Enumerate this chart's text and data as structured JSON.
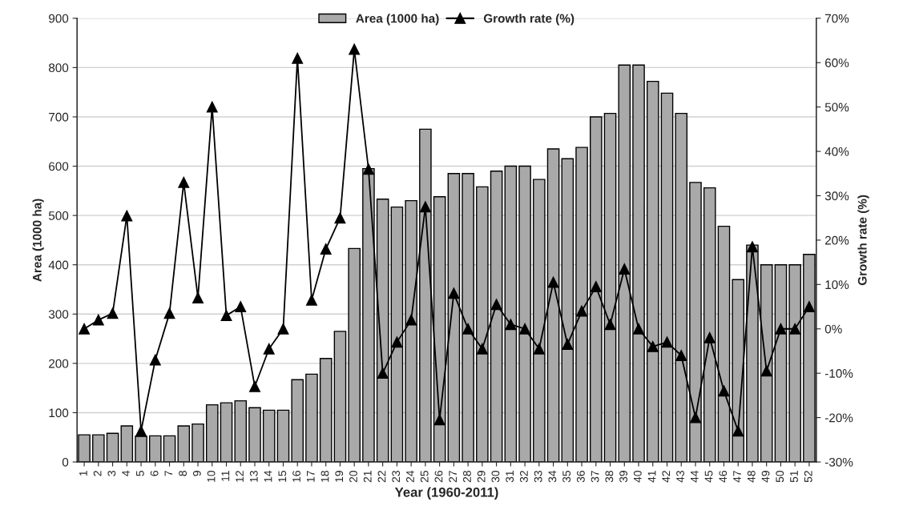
{
  "chart_data": {
    "type": "bar",
    "xlabel": "Year (1960-2011)",
    "ylabel": "Area (1000 ha)",
    "y2label": "Growth rate (%)",
    "categories": [
      "1",
      "2",
      "3",
      "4",
      "5",
      "6",
      "7",
      "8",
      "9",
      "10",
      "11",
      "12",
      "13",
      "14",
      "15",
      "16",
      "17",
      "18",
      "19",
      "20",
      "21",
      "22",
      "23",
      "24",
      "25",
      "26",
      "27",
      "28",
      "29",
      "30",
      "31",
      "32",
      "33",
      "34",
      "35",
      "36",
      "37",
      "38",
      "39",
      "40",
      "41",
      "42",
      "43",
      "44",
      "45",
      "46",
      "47",
      "48",
      "49",
      "50",
      "51",
      "52"
    ],
    "series": [
      {
        "name": "Area (1000 ha)",
        "color": "#a9a9a9",
        "values": [
          55,
          55,
          58,
          73,
          52,
          53,
          53,
          73,
          77,
          116,
          120,
          124,
          110,
          105,
          105,
          167,
          178,
          210,
          265,
          433,
          595,
          533,
          517,
          530,
          675,
          538,
          585,
          585,
          558,
          590,
          600,
          600,
          573,
          635,
          615,
          638,
          700,
          707,
          805,
          805,
          772,
          748,
          707,
          567,
          556,
          478,
          370,
          440,
          400,
          400,
          400,
          421
        ]
      },
      {
        "name": "Growth rate (%)",
        "type": "line",
        "axis": "y2",
        "color": "#000000",
        "marker": "triangle",
        "line_style": "solid",
        "values": [
          0,
          2,
          3.5,
          25.5,
          -23,
          -7,
          3.5,
          33,
          7,
          50,
          3,
          5,
          -13,
          -4.5,
          0,
          61,
          6.5,
          18,
          25,
          63,
          36,
          -10,
          -3,
          2,
          27.5,
          -20.5,
          8,
          0,
          -4.5,
          5.5,
          1,
          0,
          -4.5,
          10.5,
          -3.5,
          4,
          9.5,
          1,
          13.5,
          0,
          -4,
          -3,
          -6,
          -20,
          -2,
          -14,
          -23,
          18.5,
          -9.5,
          0,
          0,
          5
        ]
      }
    ],
    "ylim": [
      0,
      900
    ],
    "yticks": [
      0,
      100,
      200,
      300,
      400,
      500,
      600,
      700,
      800,
      900
    ],
    "y2lim": [
      -30,
      70
    ],
    "y2ticks": [
      {
        "value": -30,
        "label": "-30%"
      },
      {
        "value": -20,
        "label": "-20%"
      },
      {
        "value": -10,
        "label": "-10%"
      },
      {
        "value": 0,
        "label": "0%"
      },
      {
        "value": 10,
        "label": "10%"
      },
      {
        "value": 20,
        "label": "20%"
      },
      {
        "value": 30,
        "label": "30%"
      },
      {
        "value": 40,
        "label": "40%"
      },
      {
        "value": 50,
        "label": "50%"
      },
      {
        "value": 60,
        "label": "60%"
      },
      {
        "value": 70,
        "label": "70%"
      }
    ],
    "grid": "y",
    "legend": "top"
  }
}
